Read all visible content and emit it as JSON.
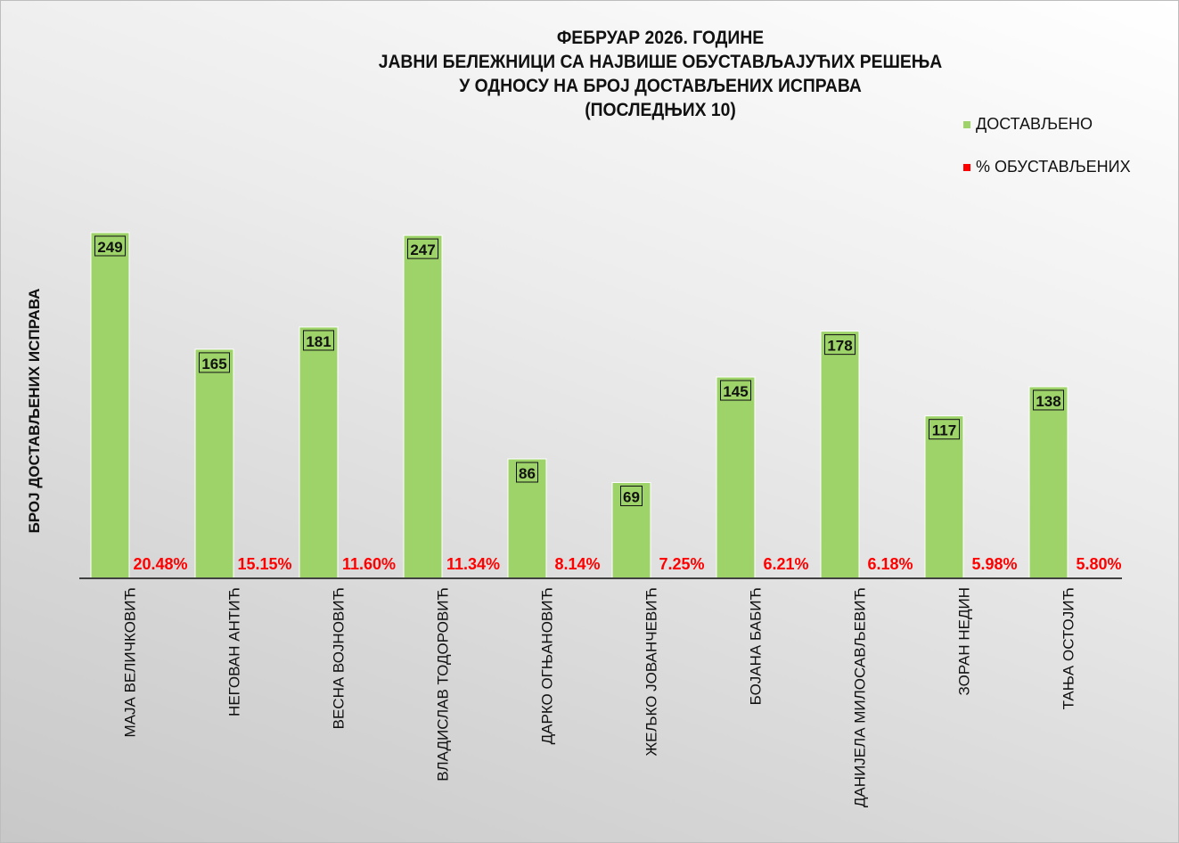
{
  "chart_data": {
    "type": "bar",
    "title": [
      "ФЕБРУАР 2026. ГОДИНЕ",
      "ЈАВНИ БЕЛЕЖНИЦИ СА НАЈВИШЕ ОБУСТАВЉАЈУЋИХ РЕШЕЊА",
      "У ОДНОСУ НА БРОЈ ДОСТАВЉЕНИХ ИСПРАВА",
      "(ПОСЛЕДЊИХ 10)"
    ],
    "ylabel": "БРОЈ ДОСТАВЉЕНИХ ИСПРАВА",
    "xlabel": "",
    "ylim": [
      0,
      250
    ],
    "grid": false,
    "legend_position": "top-right",
    "categories": [
      "МАЈА ВЕЛИЧКОВИЋ",
      "НЕГОВАН АНТИЋ",
      "ВЕСНА ВОЈНОВИЋ",
      "ВЛАДИСЛАВ ТОДОРОВИЋ",
      "ДАРКО ОГЊАНОВИЋ",
      "ЖЕЉКО ЈОВАНЧЕВИЋ",
      "БОЈАНА БАБИЋ",
      "ДАНИЈЕЛА МИЛОСАВЉЕВИЋ",
      "ЗОРАН НЕДИН",
      "ТАЊА ОСТОЈИЋ"
    ],
    "series": [
      {
        "name": "ДОСТАВЉЕНО",
        "color": "#9ed36a",
        "values": [
          249,
          165,
          181,
          247,
          86,
          69,
          145,
          178,
          117,
          138
        ],
        "labels": [
          "249",
          "165",
          "181",
          "247",
          "86",
          "69",
          "145",
          "178",
          "117",
          "138"
        ]
      },
      {
        "name": "% ОБУСТАВЉЕНИХ",
        "color": "#ff0000",
        "values": [
          0.2048,
          0.1515,
          0.116,
          0.1134,
          0.0814,
          0.0725,
          0.0621,
          0.0618,
          0.0598,
          0.058
        ],
        "labels": [
          "20.48%",
          "15.15%",
          "11.60%",
          "11.34%",
          "8.14%",
          "7.25%",
          "6.21%",
          "6.18%",
          "5.98%",
          "5.80%"
        ]
      }
    ]
  }
}
